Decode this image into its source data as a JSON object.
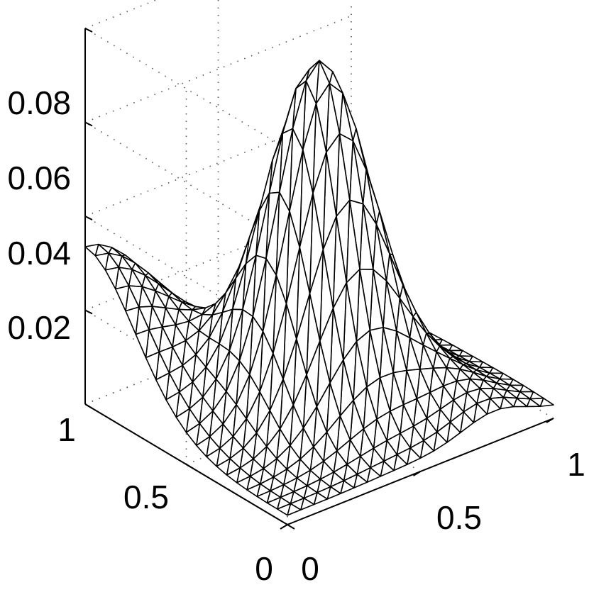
{
  "chart_data": {
    "type": "surface",
    "x_ticks": [
      "0",
      "0.5",
      "1"
    ],
    "y_ticks": [
      "0",
      "0.5",
      "1"
    ],
    "z_ticks": [
      "0.02",
      "0.04",
      "0.06",
      "0.08"
    ],
    "xlim": [
      0,
      1
    ],
    "ylim": [
      0,
      1
    ],
    "zlim": [
      0,
      0.08
    ],
    "grid": true,
    "mesh_size": 21,
    "peak": {
      "x": 0.5,
      "y": 0.5,
      "z": 0.078
    },
    "corner_value_x0_y1": 0.035,
    "colors": {
      "mesh": "#000000",
      "face": "#ffffff",
      "grid": "#555555"
    }
  }
}
